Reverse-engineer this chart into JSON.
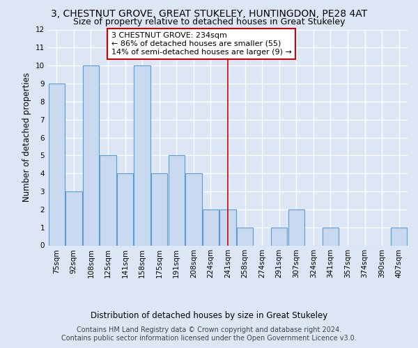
{
  "title": "3, CHESTNUT GROVE, GREAT STUKELEY, HUNTINGDON, PE28 4AT",
  "subtitle": "Size of property relative to detached houses in Great Stukeley",
  "xlabel": "Distribution of detached houses by size in Great Stukeley",
  "ylabel": "Number of detached properties",
  "categories": [
    "75sqm",
    "92sqm",
    "108sqm",
    "125sqm",
    "141sqm",
    "158sqm",
    "175sqm",
    "191sqm",
    "208sqm",
    "224sqm",
    "241sqm",
    "258sqm",
    "274sqm",
    "291sqm",
    "307sqm",
    "324sqm",
    "341sqm",
    "357sqm",
    "374sqm",
    "390sqm",
    "407sqm"
  ],
  "values": [
    9,
    3,
    10,
    5,
    4,
    10,
    4,
    5,
    4,
    2,
    2,
    1,
    0,
    1,
    2,
    0,
    1,
    0,
    0,
    0,
    1
  ],
  "bar_color": "#c9d9f0",
  "bar_edge_color": "#5b9bd5",
  "annotation_text": "3 CHESTNUT GROVE: 234sqm\n← 86% of detached houses are smaller (55)\n14% of semi-detached houses are larger (9) →",
  "annotation_bar_index": 10,
  "annotation_box_color": "#ffffff",
  "annotation_box_edge_color": "#cc0000",
  "vline_color": "#cc0000",
  "vline_x": 10,
  "ylim": [
    0,
    12
  ],
  "yticks": [
    0,
    1,
    2,
    3,
    4,
    5,
    6,
    7,
    8,
    9,
    10,
    11,
    12
  ],
  "footer_text": "Contains HM Land Registry data © Crown copyright and database right 2024.\nContains public sector information licensed under the Open Government Licence v3.0.",
  "background_color": "#dce6f5",
  "plot_bg_color": "#dce6f5",
  "grid_color": "#ffffff",
  "title_fontsize": 10,
  "subtitle_fontsize": 9,
  "axis_label_fontsize": 8.5,
  "tick_fontsize": 7.5,
  "annotation_fontsize": 8,
  "footer_fontsize": 7
}
